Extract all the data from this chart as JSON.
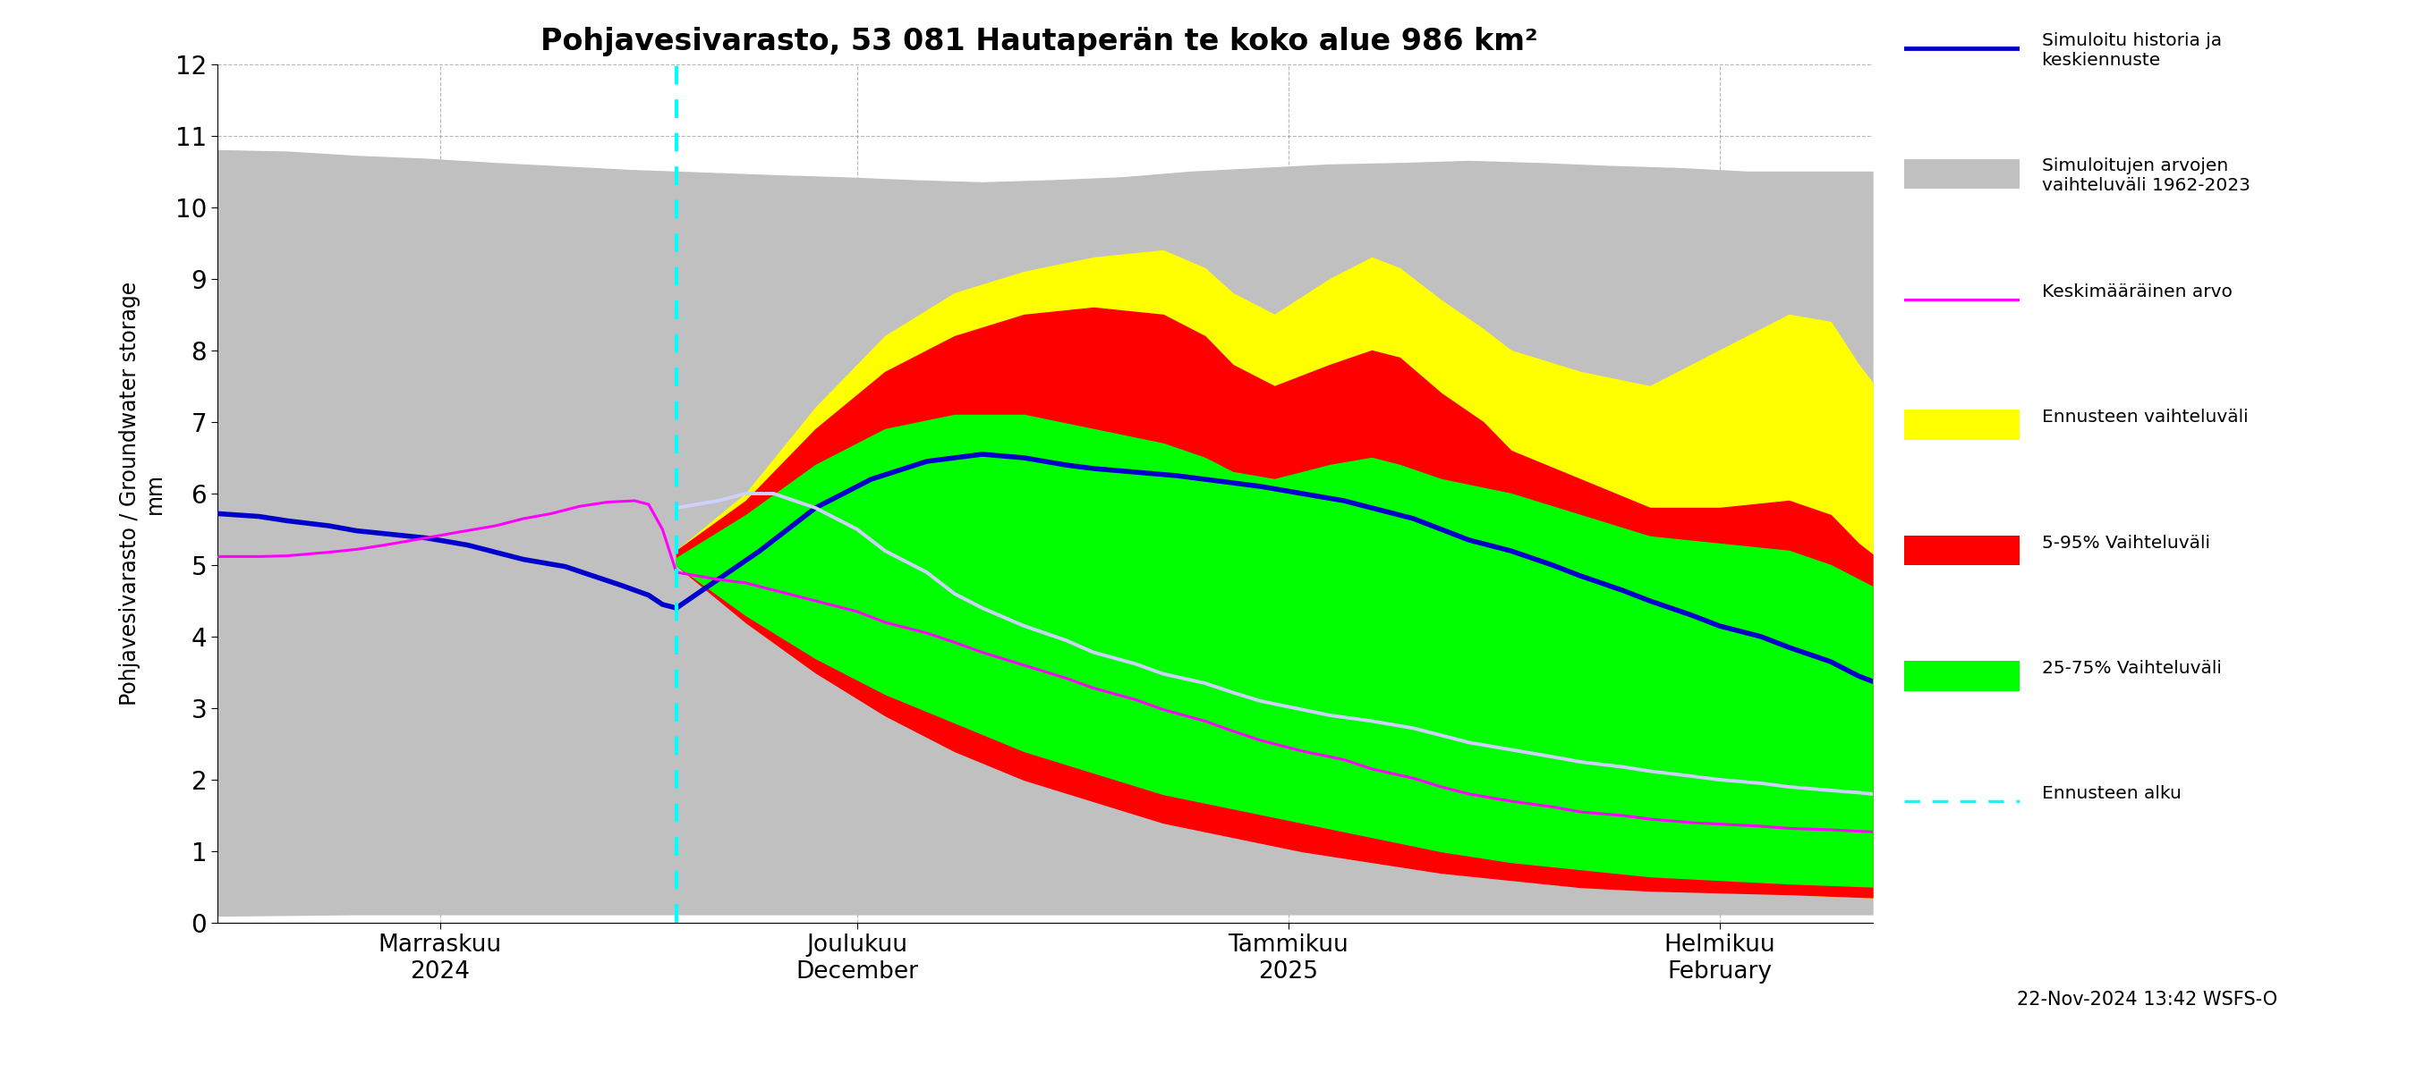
{
  "title": "Pohjavesivarasto, 53 081 Hautaperän te koko alue 986 km²",
  "ylabel_fi": "Pohjavesivarasto / Groundwater storage",
  "ylabel_mm": "mm",
  "ylim": [
    0,
    12
  ],
  "yticks": [
    0,
    1,
    2,
    3,
    4,
    5,
    6,
    7,
    8,
    9,
    10,
    11,
    12
  ],
  "xlabel_labels": [
    "Marraskuu\n2024",
    "Joulukuu\nDecember",
    "Tammikuu\n2025",
    "Helmikuu\nFebruary"
  ],
  "timestamp": "22-Nov-2024 13:42 WSFS-O",
  "colors": {
    "gray_band": "#c0c0c0",
    "yellow_band": "#ffff00",
    "red_band": "#ff0000",
    "green_band": "#00ff00",
    "blue_line": "#0000cc",
    "magenta_line": "#ff00ff",
    "white_line": "#d0d0ff",
    "cyan_vline": "#00ffff",
    "background": "#ffffff"
  }
}
